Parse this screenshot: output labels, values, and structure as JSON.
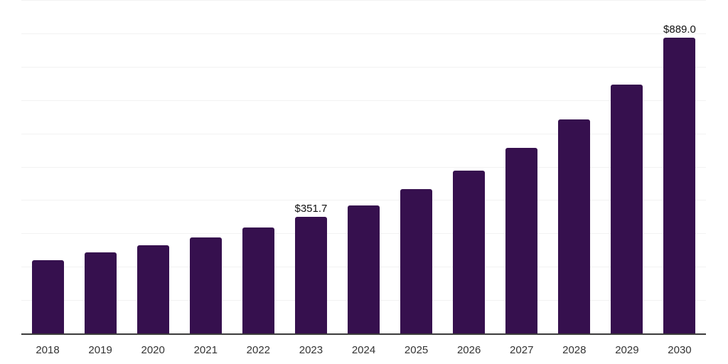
{
  "chart_data": {
    "type": "bar",
    "title": "",
    "xlabel": "",
    "ylabel": "",
    "categories": [
      "2018",
      "2019",
      "2020",
      "2021",
      "2022",
      "2023",
      "2024",
      "2025",
      "2026",
      "2027",
      "2028",
      "2029",
      "2030"
    ],
    "values": [
      221.0,
      244.4,
      265.7,
      290.5,
      318.8,
      351.7,
      386.8,
      435.7,
      490.3,
      558.3,
      643.3,
      747.5,
      889.0
    ],
    "data_labels": [
      {
        "category": "2023",
        "text": "$351.7"
      },
      {
        "category": "2030",
        "text": "$889.0"
      }
    ],
    "ylim": [
      0,
      1000
    ],
    "grid_step": 100,
    "grid": "horizontal",
    "y_tick_labels_visible": false,
    "legend_position": "none",
    "bar_color": "#36104E",
    "gridline_color": "#F2F2F2",
    "axis_line_color": "#3B3B3B",
    "tick_label_color": "#333333",
    "data_label_color": "#111111",
    "background_color": "#FFFFFF"
  }
}
